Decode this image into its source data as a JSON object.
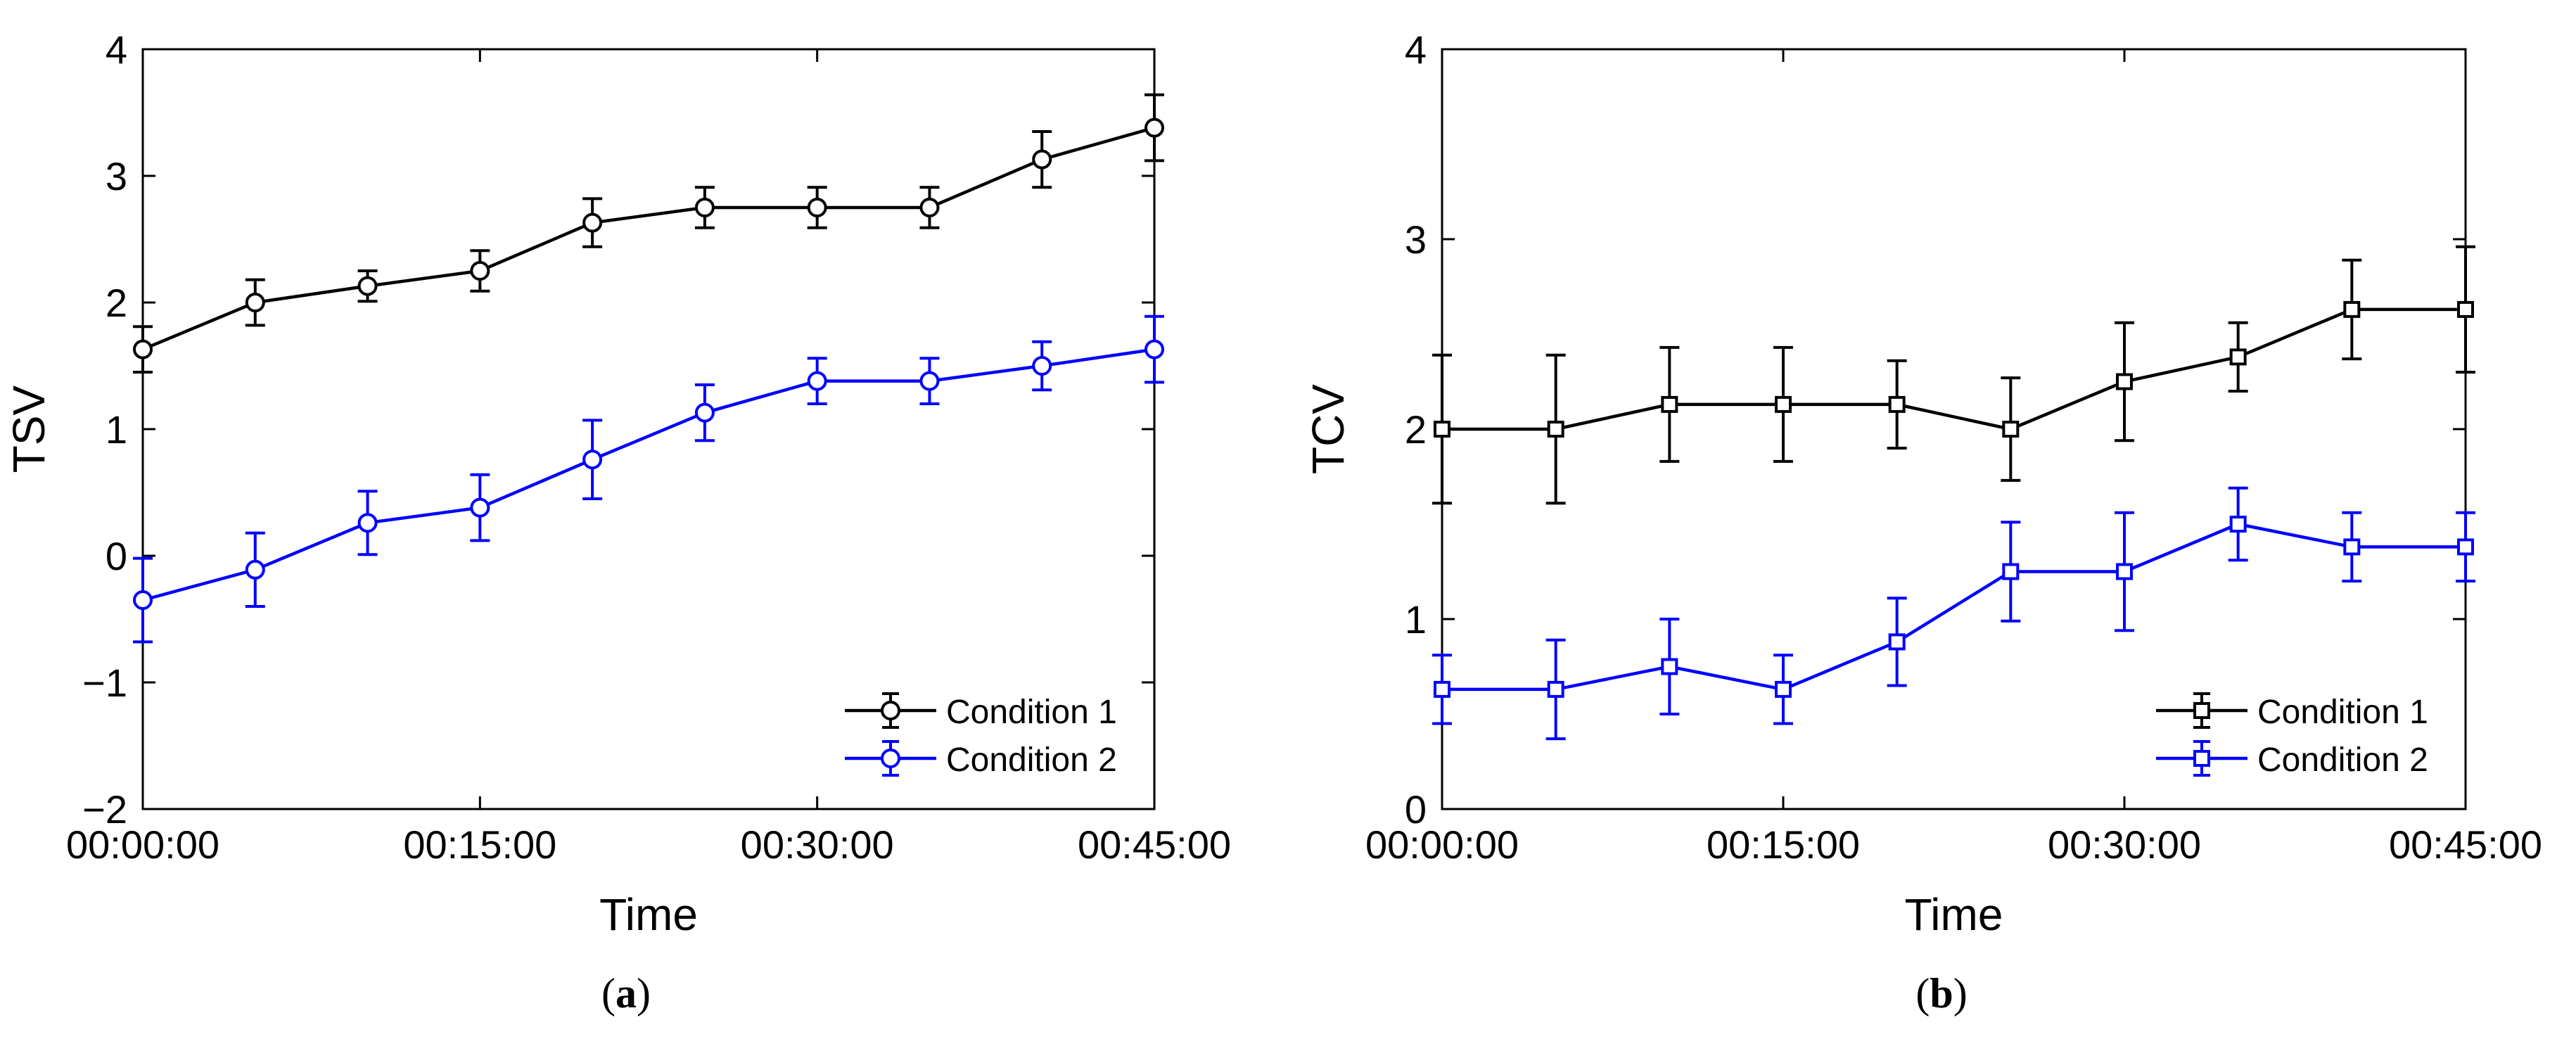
{
  "chart_data": [
    {
      "type": "line",
      "panel_label": "a",
      "title": "",
      "xlabel": "Time",
      "ylabel": "TSV",
      "xlim": [
        0,
        45
      ],
      "ylim": [
        -2,
        4
      ],
      "x_ticks": [
        0,
        15,
        30,
        45
      ],
      "x_tick_labels": [
        "00:00:00",
        "00:15:00",
        "00:30:00",
        "00:45:00"
      ],
      "y_ticks": [
        -2,
        -1,
        0,
        1,
        2,
        3,
        4
      ],
      "y_tick_labels": [
        "−2",
        "−1",
        "0",
        "1",
        "2",
        "3",
        "4"
      ],
      "grid": false,
      "legend_position": "bottom-right",
      "marker": "circle",
      "x": [
        0,
        5,
        10,
        15,
        20,
        25,
        30,
        35,
        40,
        45
      ],
      "series": [
        {
          "name": "Condition 1",
          "color": "#000000",
          "values": [
            1.63,
            2.0,
            2.13,
            2.25,
            2.63,
            2.75,
            2.75,
            2.75,
            3.13,
            3.38
          ],
          "errors": [
            0.18,
            0.18,
            0.12,
            0.16,
            0.19,
            0.16,
            0.16,
            0.16,
            0.22,
            0.26
          ]
        },
        {
          "name": "Condition 2",
          "color": "#0000ff",
          "values": [
            -0.35,
            -0.11,
            0.26,
            0.38,
            0.76,
            1.13,
            1.38,
            1.38,
            1.5,
            1.63
          ],
          "errors": [
            0.33,
            0.29,
            0.25,
            0.26,
            0.31,
            0.22,
            0.18,
            0.18,
            0.19,
            0.26
          ]
        }
      ]
    },
    {
      "type": "line",
      "panel_label": "b",
      "title": "",
      "xlabel": "Time",
      "ylabel": "TCV",
      "xlim": [
        0,
        45
      ],
      "ylim": [
        0,
        4
      ],
      "x_ticks": [
        0,
        15,
        30,
        45
      ],
      "x_tick_labels": [
        "00:00:00",
        "00:15:00",
        "00:30:00",
        "00:45:00"
      ],
      "y_ticks": [
        0,
        1,
        2,
        3,
        4
      ],
      "y_tick_labels": [
        "0",
        "1",
        "2",
        "3",
        "4"
      ],
      "grid": false,
      "legend_position": "bottom-right",
      "marker": "square",
      "x": [
        0,
        5,
        10,
        15,
        20,
        25,
        30,
        35,
        40,
        45
      ],
      "series": [
        {
          "name": "Condition 1",
          "color": "#000000",
          "values": [
            2.0,
            2.0,
            2.13,
            2.13,
            2.13,
            2.0,
            2.25,
            2.38,
            2.63,
            2.63
          ],
          "errors": [
            0.39,
            0.39,
            0.3,
            0.3,
            0.23,
            0.27,
            0.31,
            0.18,
            0.26,
            0.33
          ]
        },
        {
          "name": "Condition 2",
          "color": "#0000ff",
          "values": [
            0.63,
            0.63,
            0.75,
            0.63,
            0.88,
            1.25,
            1.25,
            1.5,
            1.38,
            1.38
          ],
          "errors": [
            0.18,
            0.26,
            0.25,
            0.18,
            0.23,
            0.26,
            0.31,
            0.19,
            0.18,
            0.18
          ]
        }
      ]
    }
  ]
}
